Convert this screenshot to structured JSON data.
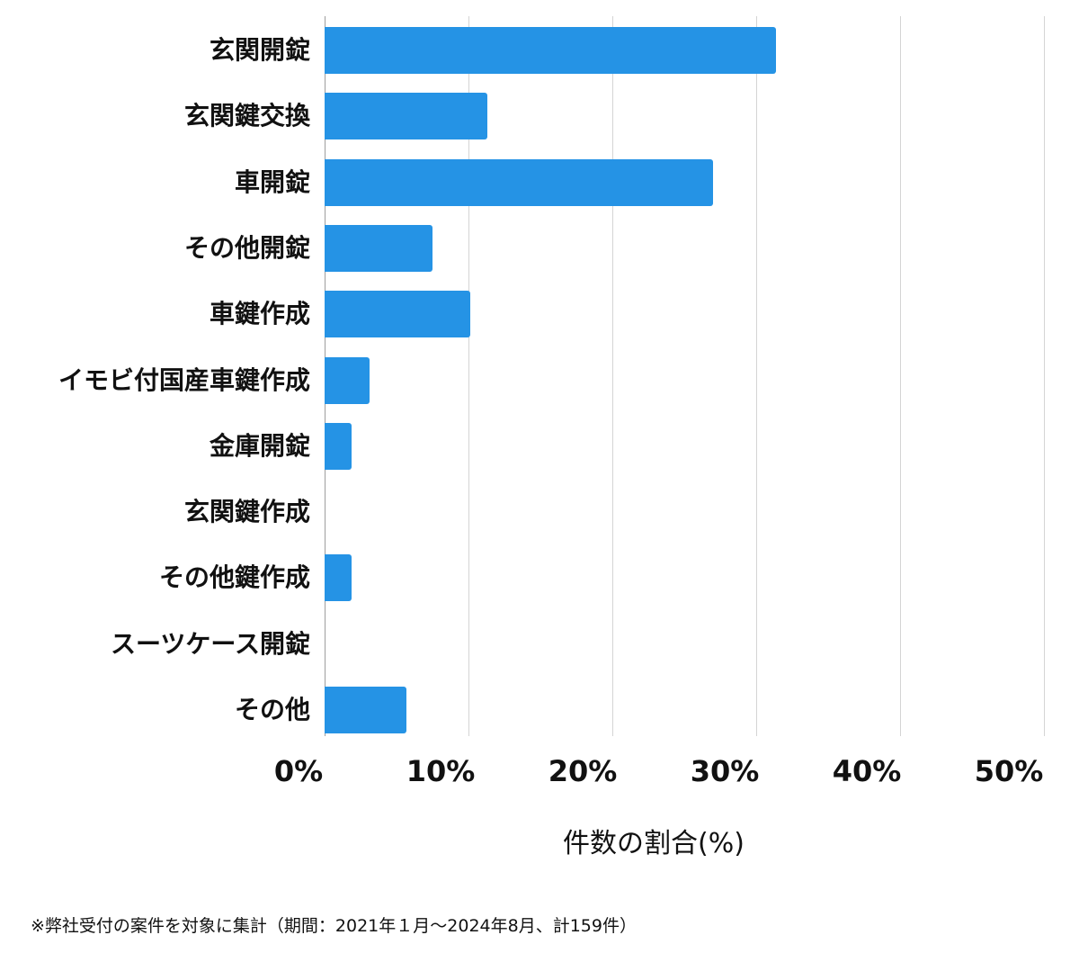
{
  "chart_data": {
    "type": "bar",
    "orientation": "horizontal",
    "title": "",
    "xlabel": "件数の割合(%)",
    "ylabel": "",
    "xlim": [
      0,
      50
    ],
    "x_ticks": [
      "0%",
      "10%",
      "20%",
      "30%",
      "40%",
      "50%"
    ],
    "grid": true,
    "legend": null,
    "bar_color": "#2593e5",
    "categories": [
      "玄関開錠",
      "玄関鍵交換",
      "車開錠",
      "その他開錠",
      "車鍵作成",
      "イモビ付国産車鍵作成",
      "金庫開錠",
      "玄関鍵作成",
      "その他鍵作成",
      "スーツケース開錠",
      "その他"
    ],
    "values": [
      31.4,
      11.3,
      27.0,
      7.5,
      10.1,
      3.1,
      1.9,
      0,
      1.9,
      0,
      5.7
    ],
    "footnote": "※弊社受付の案件を対象に集計（期間：2021年１月〜2024年8月、計159件）"
  }
}
